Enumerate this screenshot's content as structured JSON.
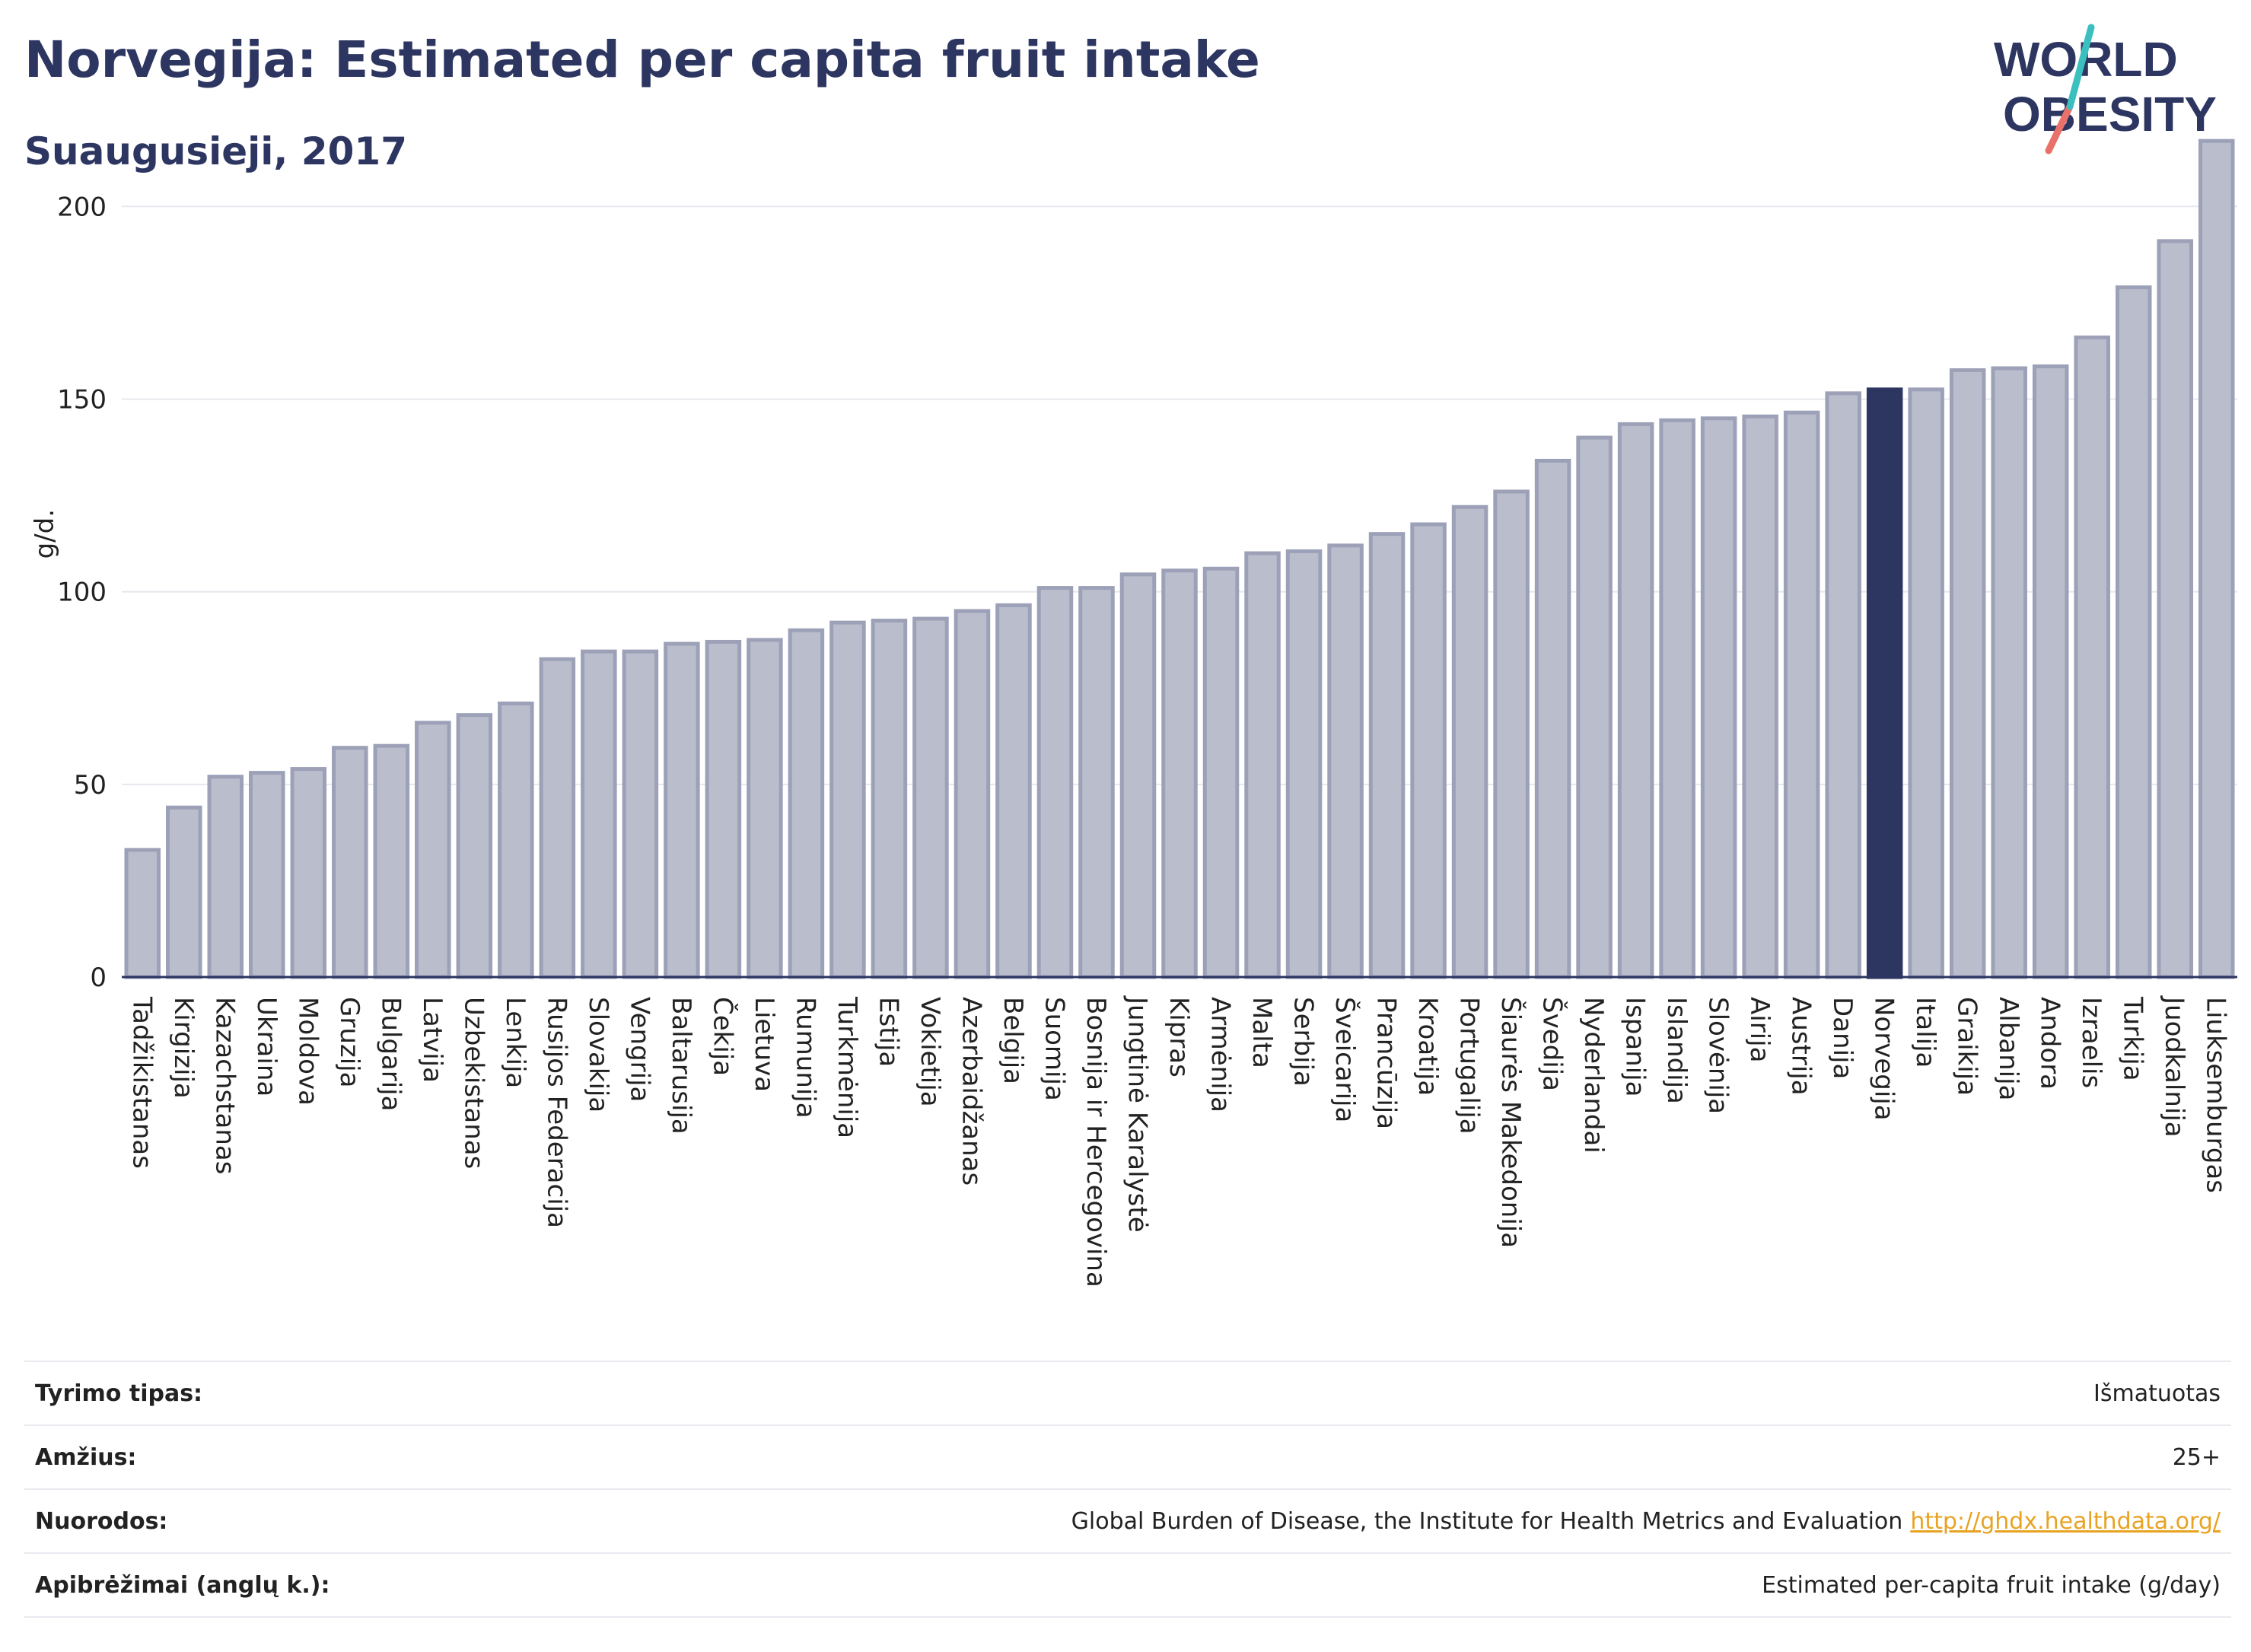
{
  "title": "Norvegija: Estimated per capita fruit intake",
  "subtitle": "Suaugusieji, 2017",
  "logo": {
    "line1": "WORLD",
    "line2": "OBESITY"
  },
  "colors": {
    "bar": "#b9bdcc",
    "bar_stroke": "#9ca1b8",
    "highlight": "#2d3561",
    "text": "#2d3561",
    "accent_teal": "#3bbfbf",
    "accent_red": "#e8726a",
    "link": "#e8a323"
  },
  "chart_data": {
    "type": "bar",
    "ylabel": "g/d.",
    "ylim": [
      0,
      220
    ],
    "yticks": [
      0,
      50,
      100,
      150,
      200
    ],
    "grid": true,
    "highlight": "Norvegija",
    "categories": [
      "Tadžikistanas",
      "Kirgizija",
      "Kazachstanas",
      "Ukraina",
      "Moldova",
      "Gruzija",
      "Bulgarija",
      "Latvija",
      "Uzbekistanas",
      "Lenkija",
      "Rusijos Federacija",
      "Slovakija",
      "Vengrija",
      "Baltarusija",
      "Čekija",
      "Lietuva",
      "Rumunija",
      "Turkmėnija",
      "Estija",
      "Vokietija",
      "Azerbaidžanas",
      "Belgija",
      "Suomija",
      "Bosnija ir Hercegovina",
      "Jungtinė Karalystė",
      "Kipras",
      "Armėnija",
      "Malta",
      "Serbija",
      "Šveicarija",
      "Prancūzija",
      "Kroatija",
      "Portugalija",
      "Šiaurės Makedonija",
      "Švedija",
      "Nyderlandai",
      "Ispanija",
      "Islandija",
      "Slovėnija",
      "Airija",
      "Austrija",
      "Danija",
      "Norvegija",
      "Italija",
      "Graikija",
      "Albanija",
      "Andora",
      "Izraelis",
      "Turkija",
      "Juodkalnija",
      "Liuksemburgas"
    ],
    "values": [
      33,
      44,
      52,
      53,
      54,
      59.5,
      60,
      66,
      68,
      71,
      82.5,
      84.5,
      84.5,
      86.5,
      87,
      87.5,
      90,
      92,
      92.5,
      93,
      95,
      96.5,
      101,
      101,
      104.5,
      105.5,
      106,
      110,
      110.5,
      112,
      115,
      117.5,
      122,
      126,
      134,
      140,
      143.5,
      144.5,
      145,
      145.5,
      146.5,
      151.5,
      152.5,
      152.5,
      157.5,
      158,
      158.5,
      166,
      179,
      191,
      217
    ]
  },
  "meta": [
    {
      "label": "Tyrimo tipas:",
      "value": "Išmatuotas"
    },
    {
      "label": "Amžius:",
      "value": "25+"
    },
    {
      "label": "Nuorodos:",
      "value": "Global Burden of Disease, the Institute for Health Metrics and Evaluation",
      "link": "http://ghdx.healthdata.org/"
    },
    {
      "label": "Apibrėžimai (anglų k.):",
      "value": "Estimated per-capita fruit intake (g/day)"
    }
  ]
}
